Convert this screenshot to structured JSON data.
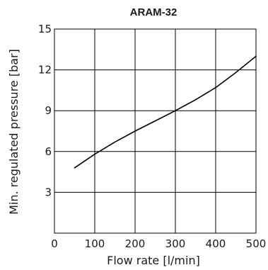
{
  "chart_data": {
    "type": "line",
    "title": "ARAM-32",
    "xlabel": "Flow rate [l/min]",
    "ylabel": "Min. regulated pressure [bar]",
    "xlim": [
      0,
      500
    ],
    "ylim": [
      0,
      15
    ],
    "x_ticks": [
      "0",
      "100",
      "200",
      "300",
      "400",
      "500"
    ],
    "y_ticks": [
      "3",
      "6",
      "9",
      "12",
      "15"
    ],
    "grid": true,
    "colors": {
      "line": "#000000",
      "grid": "#000000",
      "text": "#1a1a1a"
    },
    "series": [
      {
        "x": [
          50,
          100,
          150,
          200,
          250,
          300,
          350,
          400,
          450,
          500
        ],
        "y": [
          4.8,
          5.8,
          6.7,
          7.5,
          8.25,
          9.0,
          9.8,
          10.7,
          11.8,
          13.0
        ]
      }
    ]
  }
}
